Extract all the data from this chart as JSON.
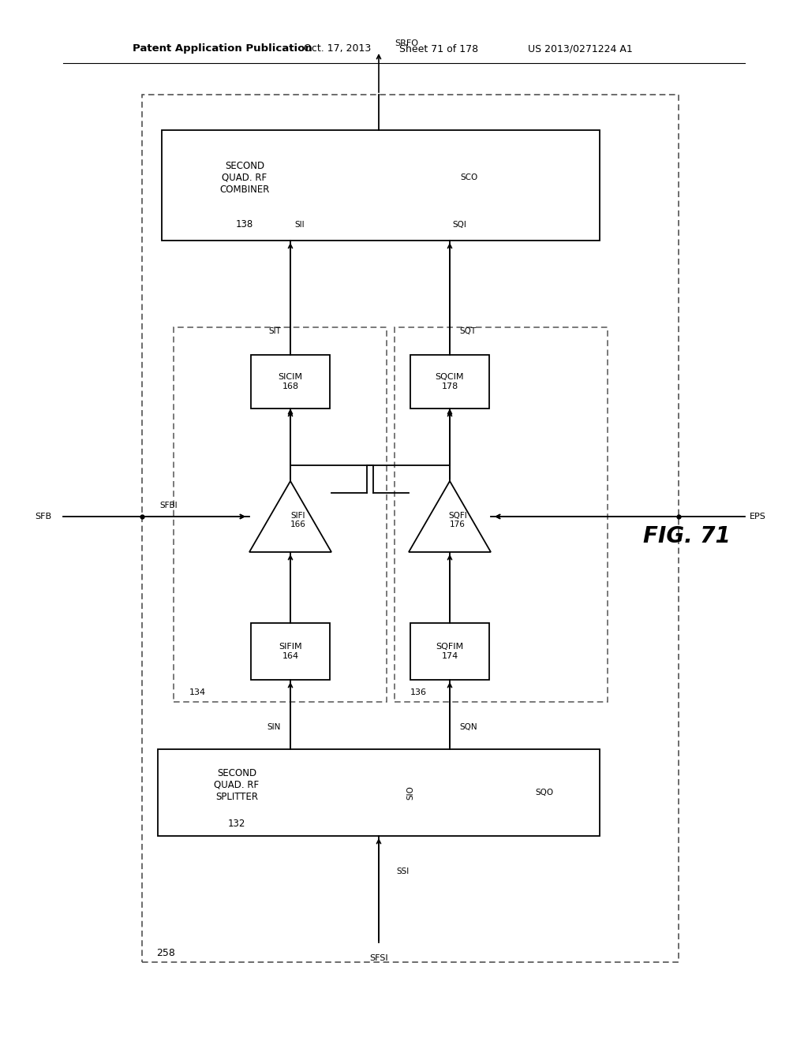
{
  "bg_color": "#ffffff",
  "header_bold": "Patent Application Publication",
  "header_date": "Oct. 17, 2013",
  "header_sheet": "Sheet 71 of 178",
  "header_patent": "US 2013/0271224 A1",
  "fig_label": "FIG. 71",
  "outer_label": "258",
  "inner_left_label": "134",
  "inner_right_label": "136",
  "splitter_text": "SECOND\nQUAD. RF\nSPLITTER\n132",
  "combiner_text": "SECOND\nQUAD. RF\nCOMBINER\n138",
  "sifim_text": "SIFIM\n164",
  "sqfim_text": "SQFIM\n174",
  "sicim_text": "SICIM\n168",
  "sqcim_text": "SQCIM\n178",
  "sifi_text": "SIFI\n166",
  "sqfi_text": "SQFI\n176",
  "sig_SFSI": "SFSI",
  "sig_SSI": "SSI",
  "sig_SIN": "SIN",
  "sig_SQN": "SQN",
  "sig_SIO": "SIO",
  "sig_SQO": "SQO",
  "sig_SFBI": "SFBI",
  "sig_SFB": "SFB",
  "sig_EPS": "EPS",
  "sig_SII": "SII",
  "sig_SQI": "SQI",
  "sig_SIT": "SIT",
  "sig_SQT": "SQT",
  "sig_SCO": "SCO",
  "sig_SRFO": "SRFO"
}
